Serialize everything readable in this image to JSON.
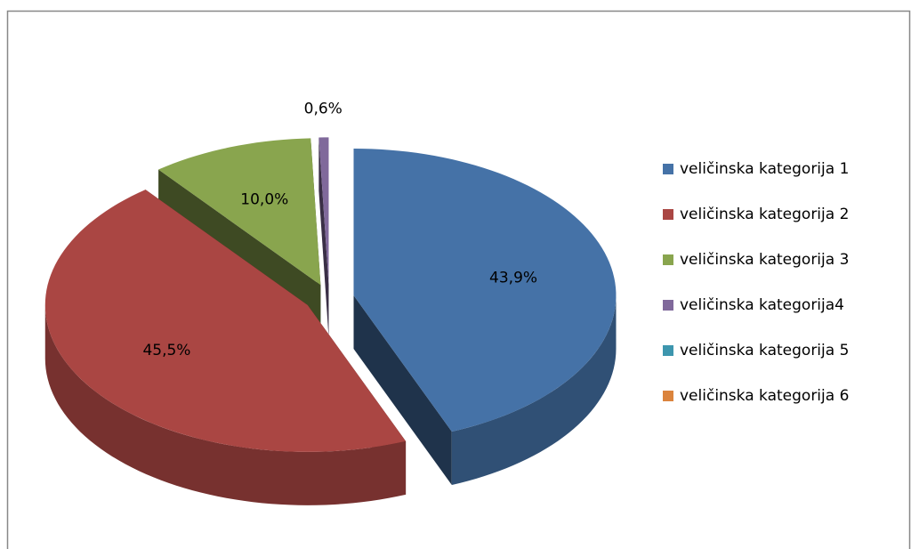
{
  "chart_data": {
    "type": "pie",
    "categories": [
      "veličinska kategorija 1",
      "veličinska kategorija 2",
      "veličinska kategorija 3",
      "veličinska kategorija4",
      "veličinska kategorija 5",
      "veličinska kategorija 6"
    ],
    "values": [
      43.9,
      45.5,
      10.0,
      0.6,
      0,
      0
    ],
    "value_labels": [
      "43,9%",
      "45,5%",
      "10,0%",
      "0,6%",
      null,
      null
    ],
    "colors": [
      "#4572a7",
      "#aa4643",
      "#89a54e",
      "#80699b",
      "#3d96ae",
      "#db843d"
    ],
    "legend": "right"
  }
}
